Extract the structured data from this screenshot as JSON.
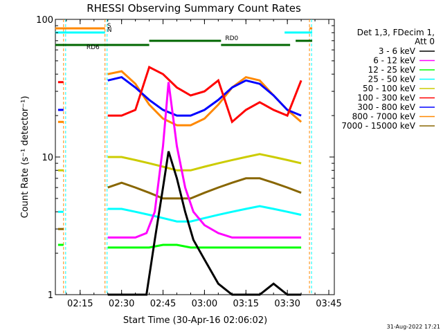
{
  "chart_data": {
    "type": "line",
    "title": "RHESSI Observing Summary Count Rates",
    "xlabel": "Start Time (30-Apr-16 02:06:02)",
    "ylabel": "Count Rate (s⁻¹ detector⁻¹)",
    "yscale": "log",
    "ylim": [
      1,
      100
    ],
    "xlim": [
      "02:06:02",
      "03:47:00"
    ],
    "x_ticks": [
      "02:15",
      "02:30",
      "02:45",
      "03:00",
      "03:15",
      "03:30",
      "03:45"
    ],
    "y_ticks": [
      "1",
      "10",
      "100"
    ],
    "grid": false,
    "legend": {
      "placement": "right",
      "header": [
        "Det 1,3, FDecim 1,",
        "Att 0"
      ],
      "entries": [
        {
          "label": "3 - 6 keV",
          "color": "#000000"
        },
        {
          "label": "6 - 12 keV",
          "color": "#ff00ff"
        },
        {
          "label": "12 - 25 keV",
          "color": "#00ff00"
        },
        {
          "label": "25 - 50 keV",
          "color": "#00ffff"
        },
        {
          "label": "50 - 100 keV",
          "color": "#cccc00"
        },
        {
          "label": "100 - 300 keV",
          "color": "#ff0000"
        },
        {
          "label": "300 - 800 keV",
          "color": "#0000ff"
        },
        {
          "label": "800 - 7000 keV",
          "color": "#ff8800"
        },
        {
          "label": "7000 - 15000 keV",
          "color": "#886600"
        }
      ]
    },
    "flags": [
      {
        "label": "S",
        "color": "#ff8800",
        "segments": [
          [
            "02:06",
            "02:24"
          ],
          [
            "03:38",
            "03:39"
          ]
        ]
      },
      {
        "label": "N",
        "color": "#00ffff",
        "segments": [
          [
            "02:06",
            "02:24"
          ],
          [
            "03:29",
            "03:39"
          ]
        ]
      },
      {
        "label": "RD0",
        "color": "#006600",
        "segments": [
          [
            "02:40",
            "03:06"
          ],
          [
            "03:33",
            "03:39"
          ]
        ]
      },
      {
        "label": "RD6",
        "color": "#006600",
        "segments": [
          [
            "02:06",
            "02:40"
          ],
          [
            "03:06",
            "03:31"
          ]
        ]
      }
    ],
    "gaps": [
      "02:09",
      "02:24",
      "03:38"
    ],
    "series": [
      {
        "name": "3 - 6 keV",
        "color": "#000000",
        "x": [
          "02:25",
          "02:30",
          "02:35",
          "02:39",
          "02:42",
          "02:45",
          "02:47",
          "02:50",
          "02:53",
          "02:56",
          "03:00",
          "03:05",
          "03:10",
          "03:15",
          "03:20",
          "03:25",
          "03:30",
          "03:35"
        ],
        "y": [
          1.0,
          1.0,
          1.0,
          1.0,
          2.5,
          6.0,
          11.0,
          7.0,
          4.0,
          2.5,
          1.8,
          1.2,
          1.0,
          1.0,
          1.0,
          1.2,
          1.0,
          1.0
        ]
      },
      {
        "name": "6 - 12 keV",
        "color": "#ff00ff",
        "x": [
          "02:25",
          "02:30",
          "02:35",
          "02:39",
          "02:42",
          "02:45",
          "02:47",
          "02:50",
          "02:53",
          "02:56",
          "03:00",
          "03:05",
          "03:10",
          "03:15",
          "03:20",
          "03:25",
          "03:30",
          "03:35"
        ],
        "y": [
          2.6,
          2.6,
          2.6,
          2.8,
          4.0,
          12.0,
          35.0,
          12.0,
          6.0,
          4.0,
          3.2,
          2.8,
          2.6,
          2.6,
          2.6,
          2.6,
          2.6,
          2.6
        ]
      },
      {
        "name": "12 - 25 keV",
        "color": "#00ff00",
        "x": [
          "02:07",
          "02:09",
          "02:25",
          "02:30",
          "02:35",
          "02:40",
          "02:45",
          "02:50",
          "02:55",
          "03:00",
          "03:05",
          "03:10",
          "03:15",
          "03:20",
          "03:25",
          "03:30",
          "03:35"
        ],
        "y": [
          2.3,
          2.3,
          2.2,
          2.2,
          2.2,
          2.2,
          2.3,
          2.3,
          2.2,
          2.2,
          2.2,
          2.2,
          2.2,
          2.2,
          2.2,
          2.2,
          2.2
        ]
      },
      {
        "name": "25 - 50 keV",
        "color": "#00ffff",
        "x": [
          "02:07",
          "02:09",
          "02:25",
          "02:30",
          "02:35",
          "02:40",
          "02:45",
          "02:50",
          "02:55",
          "03:00",
          "03:05",
          "03:10",
          "03:15",
          "03:20",
          "03:25",
          "03:30",
          "03:35"
        ],
        "y": [
          4.0,
          4.0,
          4.2,
          4.2,
          4.0,
          3.8,
          3.6,
          3.4,
          3.4,
          3.6,
          3.8,
          4.0,
          4.2,
          4.4,
          4.2,
          4.0,
          3.8
        ]
      },
      {
        "name": "50 - 100 keV",
        "color": "#cccc00",
        "x": [
          "02:07",
          "02:09",
          "02:25",
          "02:30",
          "02:35",
          "02:40",
          "02:45",
          "02:50",
          "02:55",
          "03:00",
          "03:05",
          "03:10",
          "03:15",
          "03:20",
          "03:25",
          "03:30",
          "03:35"
        ],
        "y": [
          8.0,
          8.0,
          10.0,
          10.0,
          9.5,
          9.0,
          8.5,
          8.0,
          8.0,
          8.5,
          9.0,
          9.5,
          10.0,
          10.5,
          10.0,
          9.5,
          9.0
        ]
      },
      {
        "name": "100 - 300 keV",
        "color": "#ff0000",
        "x": [
          "02:07",
          "02:09",
          "02:25",
          "02:30",
          "02:35",
          "02:40",
          "02:45",
          "02:50",
          "02:55",
          "03:00",
          "03:05",
          "03:10",
          "03:15",
          "03:20",
          "03:25",
          "03:30",
          "03:35"
        ],
        "y": [
          35.0,
          35.0,
          20.0,
          20.0,
          22.0,
          45.0,
          40.0,
          32.0,
          28.0,
          30.0,
          36.0,
          18.0,
          22.0,
          25.0,
          22.0,
          20.0,
          36.0
        ]
      },
      {
        "name": "300 - 800 keV",
        "color": "#0000ff",
        "x": [
          "02:07",
          "02:09",
          "02:25",
          "02:30",
          "02:35",
          "02:40",
          "02:45",
          "02:50",
          "02:55",
          "03:00",
          "03:05",
          "03:10",
          "03:15",
          "03:20",
          "03:25",
          "03:30",
          "03:35"
        ],
        "y": [
          22.0,
          22.0,
          36.0,
          38.0,
          32.0,
          26.0,
          22.0,
          20.0,
          20.0,
          22.0,
          26.0,
          32.0,
          36.0,
          34.0,
          28.0,
          22.0,
          20.0
        ]
      },
      {
        "name": "800 - 7000 keV",
        "color": "#ff8800",
        "x": [
          "02:07",
          "02:09",
          "02:25",
          "02:30",
          "02:35",
          "02:40",
          "02:45",
          "02:50",
          "02:55",
          "03:00",
          "03:05",
          "03:10",
          "03:15",
          "03:20",
          "03:25",
          "03:30",
          "03:35"
        ],
        "y": [
          18.0,
          18.0,
          40.0,
          42.0,
          34.0,
          24.0,
          19.0,
          17.0,
          17.0,
          19.0,
          24.0,
          32.0,
          38.0,
          36.0,
          28.0,
          22.0,
          18.0
        ]
      },
      {
        "name": "7000 - 15000 keV",
        "color": "#886600",
        "x": [
          "02:07",
          "02:09",
          "02:25",
          "02:30",
          "02:35",
          "02:40",
          "02:45",
          "02:50",
          "02:55",
          "03:00",
          "03:05",
          "03:10",
          "03:15",
          "03:20",
          "03:25",
          "03:30",
          "03:35"
        ],
        "y": [
          3.0,
          3.0,
          6.0,
          6.5,
          6.0,
          5.5,
          5.0,
          5.0,
          5.0,
          5.5,
          6.0,
          6.5,
          7.0,
          7.0,
          6.5,
          6.0,
          5.5
        ]
      }
    ],
    "footer_date": "31-Aug-2022 17:21"
  }
}
